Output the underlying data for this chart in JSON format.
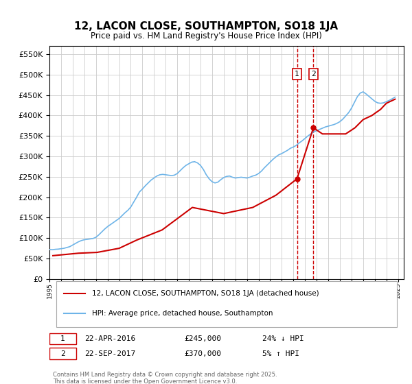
{
  "title": "12, LACON CLOSE, SOUTHAMPTON, SO18 1JA",
  "subtitle": "Price paid vs. HM Land Registry's House Price Index (HPI)",
  "ylabel_ticks": [
    "£0",
    "£50K",
    "£100K",
    "£150K",
    "£200K",
    "£250K",
    "£300K",
    "£350K",
    "£400K",
    "£450K",
    "£500K",
    "£550K"
  ],
  "ylim": [
    0,
    570000
  ],
  "ytick_vals": [
    0,
    50000,
    100000,
    150000,
    200000,
    250000,
    300000,
    350000,
    400000,
    450000,
    500000,
    550000
  ],
  "xlim_start": 1995.0,
  "xlim_end": 2025.5,
  "hpi_color": "#6eb4e8",
  "price_color": "#cc0000",
  "vline_color": "#cc0000",
  "grid_color": "#cccccc",
  "legend_label_red": "12, LACON CLOSE, SOUTHAMPTON, SO18 1JA (detached house)",
  "legend_label_blue": "HPI: Average price, detached house, Southampton",
  "transaction1_label": "1",
  "transaction1_date": "22-APR-2016",
  "transaction1_price": "£245,000",
  "transaction1_hpi": "24% ↓ HPI",
  "transaction2_label": "2",
  "transaction2_date": "22-SEP-2017",
  "transaction2_price": "£370,000",
  "transaction2_hpi": "5% ↑ HPI",
  "transaction1_x": 2016.31,
  "transaction2_x": 2017.72,
  "transaction1_y": 245000,
  "transaction2_y": 370000,
  "footnote": "Contains HM Land Registry data © Crown copyright and database right 2025.\nThis data is licensed under the Open Government Licence v3.0.",
  "hpi_years": [
    1995.0,
    1995.25,
    1995.5,
    1995.75,
    1996.0,
    1996.25,
    1996.5,
    1996.75,
    1997.0,
    1997.25,
    1997.5,
    1997.75,
    1998.0,
    1998.25,
    1998.5,
    1998.75,
    1999.0,
    1999.25,
    1999.5,
    1999.75,
    2000.0,
    2000.25,
    2000.5,
    2000.75,
    2001.0,
    2001.25,
    2001.5,
    2001.75,
    2002.0,
    2002.25,
    2002.5,
    2002.75,
    2003.0,
    2003.25,
    2003.5,
    2003.75,
    2004.0,
    2004.25,
    2004.5,
    2004.75,
    2005.0,
    2005.25,
    2005.5,
    2005.75,
    2006.0,
    2006.25,
    2006.5,
    2006.75,
    2007.0,
    2007.25,
    2007.5,
    2007.75,
    2008.0,
    2008.25,
    2008.5,
    2008.75,
    2009.0,
    2009.25,
    2009.5,
    2009.75,
    2010.0,
    2010.25,
    2010.5,
    2010.75,
    2011.0,
    2011.25,
    2011.5,
    2011.75,
    2012.0,
    2012.25,
    2012.5,
    2012.75,
    2013.0,
    2013.25,
    2013.5,
    2013.75,
    2014.0,
    2014.25,
    2014.5,
    2014.75,
    2015.0,
    2015.25,
    2015.5,
    2015.75,
    2016.0,
    2016.25,
    2016.5,
    2016.75,
    2017.0,
    2017.25,
    2017.5,
    2017.75,
    2018.0,
    2018.25,
    2018.5,
    2018.75,
    2019.0,
    2019.25,
    2019.5,
    2019.75,
    2020.0,
    2020.25,
    2020.5,
    2020.75,
    2021.0,
    2021.25,
    2021.5,
    2021.75,
    2022.0,
    2022.25,
    2022.5,
    2022.75,
    2023.0,
    2023.25,
    2023.5,
    2023.75,
    2024.0,
    2024.25,
    2024.5,
    2024.75
  ],
  "hpi_values": [
    72000,
    71500,
    72500,
    73000,
    74000,
    75000,
    77000,
    79000,
    83000,
    87000,
    91000,
    94000,
    96000,
    97000,
    98000,
    99000,
    102000,
    108000,
    115000,
    122000,
    128000,
    133000,
    138000,
    143000,
    148000,
    155000,
    162000,
    168000,
    176000,
    188000,
    200000,
    213000,
    220000,
    228000,
    235000,
    242000,
    247000,
    252000,
    255000,
    256000,
    255000,
    254000,
    253000,
    254000,
    258000,
    265000,
    272000,
    278000,
    282000,
    286000,
    287000,
    284000,
    278000,
    268000,
    255000,
    245000,
    238000,
    235000,
    237000,
    243000,
    248000,
    251000,
    252000,
    249000,
    247000,
    248000,
    249000,
    248000,
    247000,
    249000,
    252000,
    254000,
    258000,
    264000,
    272000,
    279000,
    286000,
    293000,
    299000,
    304000,
    307000,
    311000,
    315000,
    320000,
    323000,
    327000,
    333000,
    338000,
    344000,
    350000,
    355000,
    360000,
    363000,
    366000,
    369000,
    372000,
    374000,
    376000,
    378000,
    381000,
    385000,
    391000,
    399000,
    407000,
    418000,
    432000,
    446000,
    455000,
    458000,
    453000,
    447000,
    441000,
    435000,
    431000,
    430000,
    431000,
    434000,
    437000,
    441000,
    445000
  ],
  "price_years": [
    1995.3,
    1997.5,
    1999.1,
    2001.0,
    2002.5,
    2004.7,
    2007.3,
    2010.0,
    2012.5,
    2014.5,
    2016.31,
    2017.72,
    2018.5,
    2019.5,
    2020.5,
    2021.3,
    2022.0,
    2022.75,
    2023.5,
    2024.0,
    2024.75
  ],
  "price_values": [
    57000,
    63000,
    65000,
    75000,
    95000,
    120000,
    175000,
    160000,
    175000,
    205000,
    245000,
    370000,
    355000,
    355000,
    355000,
    370000,
    390000,
    400000,
    415000,
    430000,
    440000
  ]
}
